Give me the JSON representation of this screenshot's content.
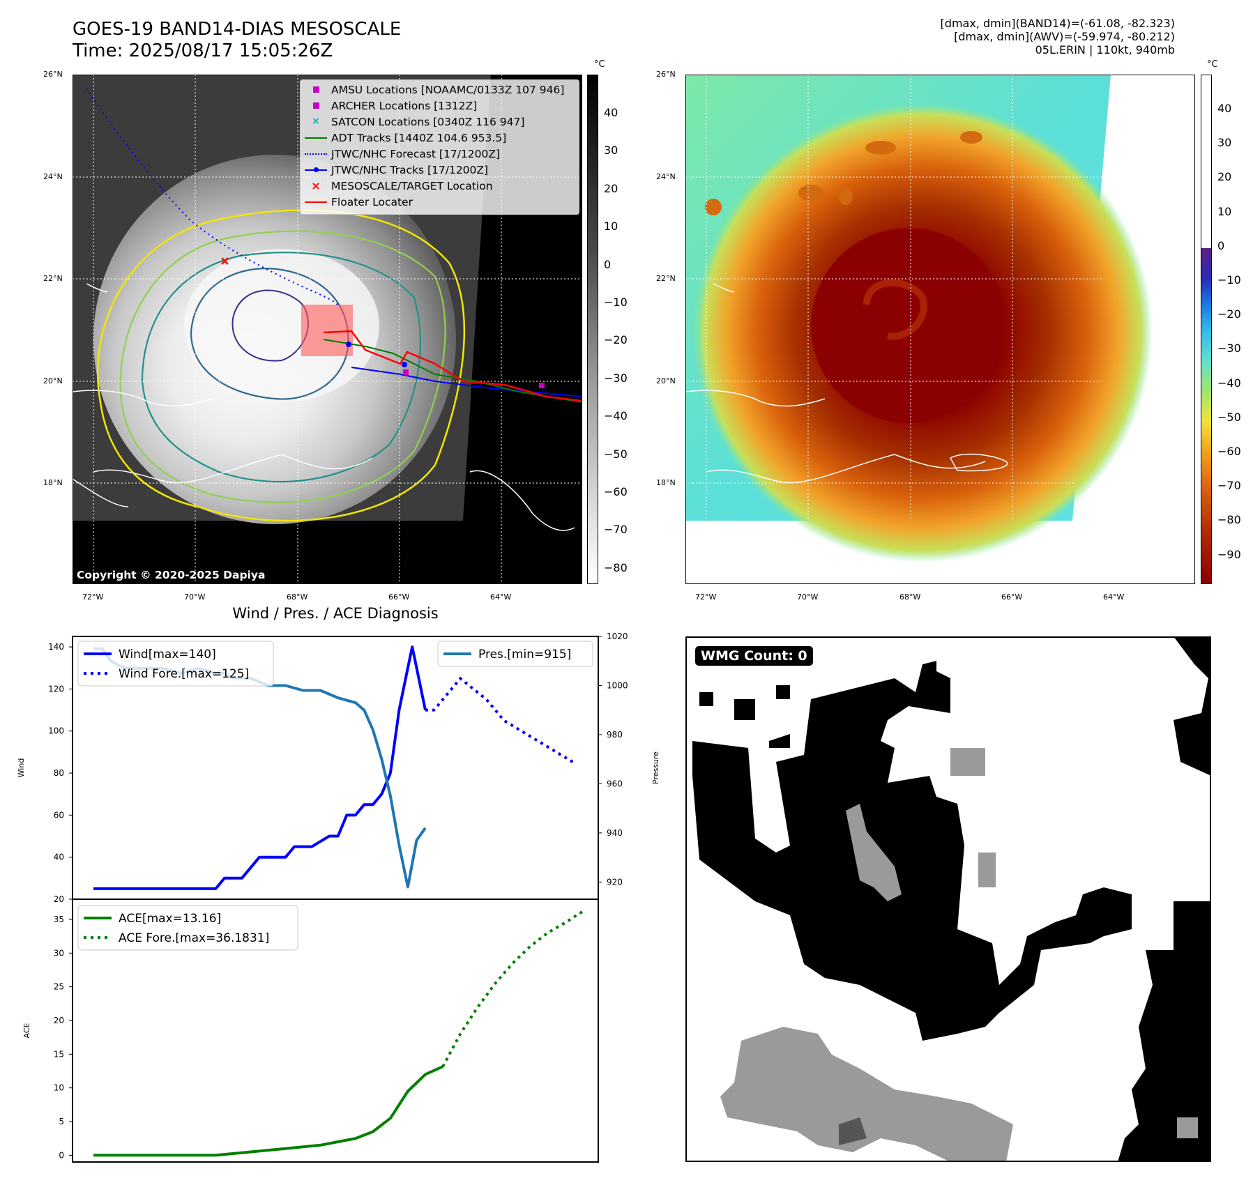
{
  "header": {
    "title_line1": "GOES-19 BAND14-DIAS MESOSCALE",
    "title_line2": "Time: 2025/08/17 15:05:26Z",
    "info_line1": "[dmax, dmin](BAND14)=(-61.08, -82.323)",
    "info_line2": "[dmax, dmin](AWV)=(-59.974, -80.212)",
    "info_line3": "05L.ERIN | 110kt, 940mb"
  },
  "map_axes": {
    "lat_labels": [
      "26°N",
      "24°N",
      "22°N",
      "20°N",
      "18°N"
    ],
    "lon_labels": [
      "72°W",
      "70°W",
      "68°W",
      "66°W",
      "64°W"
    ]
  },
  "map_left": {
    "copyright": "Copyright © 2020-2025 Dapiya",
    "colorbar_unit": "°C",
    "colorbar_ticks": [
      "40",
      "30",
      "20",
      "10",
      "0",
      "−10",
      "−20",
      "−30",
      "−40",
      "−50",
      "−60",
      "−70",
      "−80"
    ],
    "legend": [
      {
        "label": "AMSU Locations [NOAAMC/0133Z 107 946]",
        "color": "#c800c8",
        "marker": "square"
      },
      {
        "label": "ARCHER Locations [1312Z]",
        "color": "#c800c8",
        "marker": "square"
      },
      {
        "label": "SATCON Locations [0340Z 116 947]",
        "color": "#00b4b4",
        "marker": "x"
      },
      {
        "label": "ADT Tracks [1440Z 104.6 953.5]",
        "color": "#007a00",
        "marker": "line"
      },
      {
        "label": "JTWC/NHC Forecast [17/1200Z]",
        "color": "#0000ff",
        "marker": "dotted"
      },
      {
        "label": "JTWC/NHC Tracks [17/1200Z]",
        "color": "#0000ff",
        "marker": "line-dot"
      },
      {
        "label": "MESOSCALE/TARGET Location",
        "color": "#ff0000",
        "marker": "x"
      },
      {
        "label": "Floater Locater",
        "color": "#ff0000",
        "marker": "line"
      }
    ]
  },
  "map_right": {
    "colorbar_unit": "°C",
    "colorbar_ticks": [
      "40",
      "30",
      "20",
      "10",
      "0",
      "−10",
      "−20",
      "−30",
      "−40",
      "−50",
      "−60",
      "−70",
      "−80",
      "−90"
    ]
  },
  "wmg": {
    "count_label": "WMG Count: 0"
  },
  "chart_data": [
    {
      "type": "line",
      "title": "Wind / Pres. / ACE Diagnosis",
      "ylabel": "Wind",
      "y2label": "Pressure",
      "ylim": [
        20,
        145
      ],
      "y2lim": [
        913,
        1020
      ],
      "yticks": [
        "20",
        "40",
        "60",
        "80",
        "100",
        "120",
        "140"
      ],
      "y2ticks": [
        "920",
        "940",
        "960",
        "980",
        "1000",
        "1020"
      ],
      "legend_left": [
        "Wind[max=140]",
        "Wind Fore.[max=125]"
      ],
      "legend_right": [
        "Pres.[min=915]"
      ],
      "series": [
        {
          "name": "Wind",
          "color": "#0000ff",
          "style": "solid",
          "axis": "left",
          "x": [
            0,
            14,
            15,
            17,
            19,
            20,
            22,
            23,
            25,
            27,
            28,
            29,
            30,
            31,
            32,
            33,
            34,
            35,
            36,
            36.5,
            37,
            38
          ],
          "values": [
            25,
            25,
            30,
            30,
            40,
            40,
            40,
            45,
            45,
            50,
            50,
            60,
            60,
            65,
            65,
            70,
            80,
            110,
            130,
            140,
            130,
            110
          ]
        },
        {
          "name": "Wind Fore.",
          "color": "#0000ff",
          "style": "dotted",
          "axis": "left",
          "x": [
            38,
            39,
            40,
            42,
            45,
            47,
            49,
            51,
            53,
            55
          ],
          "values": [
            110,
            110,
            115,
            125,
            115,
            105,
            100,
            95,
            90,
            85
          ]
        },
        {
          "name": "Pres.",
          "color": "#1f77b4",
          "style": "solid",
          "axis": "right",
          "x": [
            0,
            1,
            2,
            3,
            4,
            6,
            8,
            10,
            12,
            14,
            15,
            16,
            17,
            18,
            20,
            22,
            24,
            26,
            28,
            30,
            31,
            32,
            33,
            34,
            35,
            36,
            37,
            38
          ],
          "values": [
            1015,
            1015,
            1010,
            1008,
            1007,
            1007,
            1007,
            1005,
            1007,
            1005,
            1005,
            1003,
            1003,
            1003,
            1000,
            1000,
            998,
            998,
            995,
            993,
            990,
            982,
            970,
            955,
            935,
            918,
            937,
            942
          ]
        }
      ]
    },
    {
      "type": "line",
      "ylabel": "ACE",
      "ylim": [
        -1,
        38
      ],
      "yticks": [
        "0",
        "5",
        "10",
        "15",
        "20",
        "25",
        "30",
        "35"
      ],
      "legend": [
        "ACE[max=13.16]",
        "ACE Fore.[max=36.1831]"
      ],
      "series": [
        {
          "name": "ACE",
          "color": "#008000",
          "style": "solid",
          "x": [
            0,
            6,
            10,
            14,
            18,
            22,
            26,
            28,
            30,
            32,
            34,
            36,
            38,
            40
          ],
          "values": [
            0,
            0,
            0,
            0,
            0.5,
            1.0,
            1.5,
            2.0,
            2.5,
            3.5,
            5.5,
            9.5,
            12.0,
            13.16
          ]
        },
        {
          "name": "ACE Fore.",
          "color": "#008000",
          "style": "dotted",
          "x": [
            40,
            42,
            44,
            46,
            48,
            50,
            52,
            54,
            56
          ],
          "values": [
            13.16,
            18,
            22,
            25.5,
            28.5,
            31,
            33,
            34.5,
            36.18
          ]
        }
      ]
    }
  ]
}
